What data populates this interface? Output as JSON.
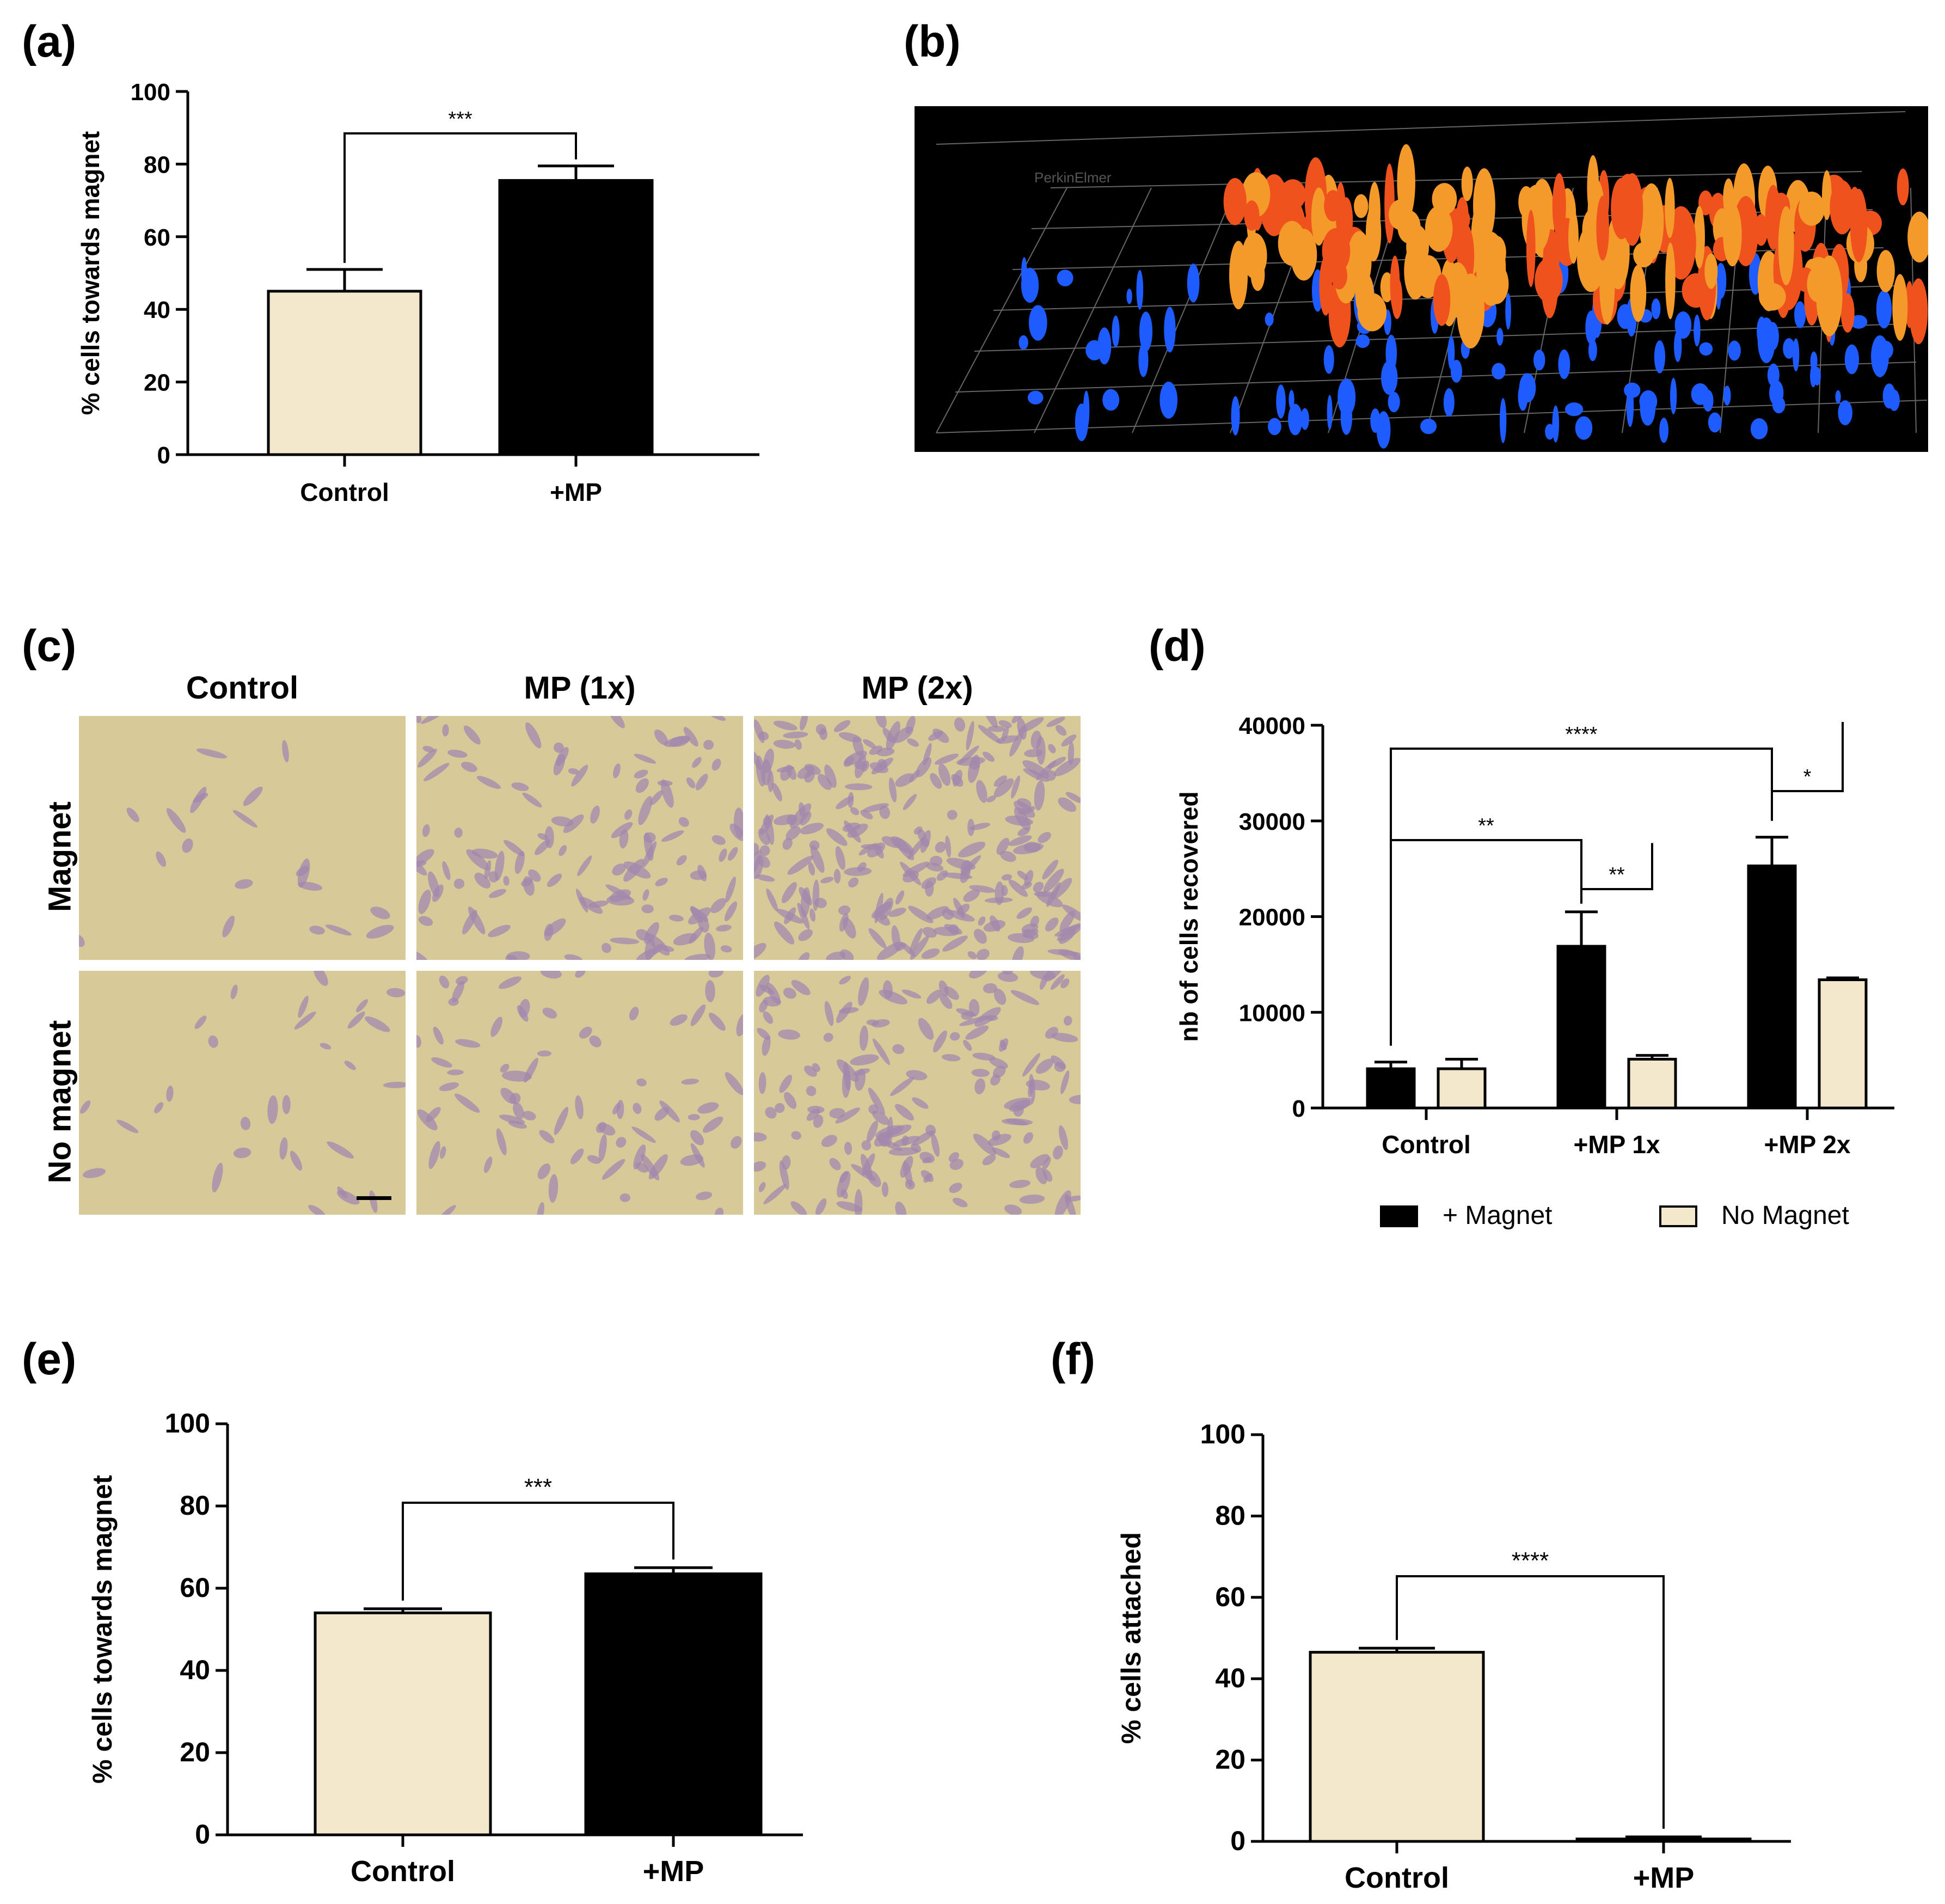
{
  "panels": {
    "a": {
      "letter": "(a)"
    },
    "b": {
      "letter": "(b)",
      "watermark": "PerkinElmer"
    },
    "c": {
      "letter": "(c)",
      "cols": [
        "Control",
        "MP (1x)",
        "MP (2x)"
      ],
      "rows": [
        "Magnet",
        "No magnet"
      ]
    },
    "d": {
      "letter": "(d)"
    },
    "e": {
      "letter": "(e)"
    },
    "f": {
      "letter": "(f)"
    }
  },
  "colors": {
    "cream": "#f3e8cc",
    "black": "#000000",
    "cellStain": "#9d7fa8",
    "bg": "#d8ca98",
    "orange": "#f0521e",
    "blue": "#1f5cff"
  },
  "chart_data": [
    {
      "id": "a",
      "type": "bar",
      "title": "",
      "categories": [
        "Control",
        "+MP"
      ],
      "values": [
        45,
        75.5
      ],
      "errors": [
        6,
        4
      ],
      "colors": [
        "#f3e8cc",
        "#000000"
      ],
      "ylabel": "% cells towards magnet",
      "ylim": [
        0,
        100
      ],
      "yticks": [
        "0",
        "20",
        "40",
        "60",
        "80",
        "100"
      ],
      "annotations": [
        {
          "from": 0,
          "to": 1,
          "label": "***"
        }
      ]
    },
    {
      "id": "d",
      "type": "bar",
      "title": "",
      "categories": [
        "Control",
        "+MP 1x",
        "+MP 2x"
      ],
      "series": [
        {
          "name": "+ Magnet",
          "values": [
            4100,
            16900,
            25300
          ],
          "errors": [
            700,
            3600,
            3000
          ],
          "color": "#000000"
        },
        {
          "name": "No Magnet",
          "values": [
            4100,
            5100,
            13400
          ],
          "errors": [
            1000,
            400,
            200
          ],
          "color": "#f3e8cc"
        }
      ],
      "ylabel": "nb of cells recovered",
      "ylim": [
        0,
        40000
      ],
      "yticks": [
        "0",
        "10000",
        "20000",
        "30000",
        "40000"
      ],
      "legend": [
        "+ Magnet",
        "No Magnet"
      ],
      "annotations": [
        {
          "label": "****"
        },
        {
          "label": "**"
        },
        {
          "label": "**"
        },
        {
          "label": "*"
        }
      ]
    },
    {
      "id": "e",
      "type": "bar",
      "title": "",
      "categories": [
        "Control",
        "+MP"
      ],
      "values": [
        54,
        63.5
      ],
      "errors": [
        1,
        1.5
      ],
      "colors": [
        "#f3e8cc",
        "#000000"
      ],
      "ylabel": "% cells towards magnet",
      "ylim": [
        0,
        100
      ],
      "yticks": [
        "0",
        "20",
        "40",
        "60",
        "80",
        "100"
      ],
      "annotations": [
        {
          "from": 0,
          "to": 1,
          "label": "***"
        }
      ]
    },
    {
      "id": "f",
      "type": "bar",
      "title": "",
      "categories": [
        "Control",
        "+MP"
      ],
      "values": [
        46.5,
        0.6
      ],
      "errors": [
        1,
        0.5
      ],
      "colors": [
        "#f3e8cc",
        "#f3e8cc"
      ],
      "ylabel": "% cells attached",
      "ylim": [
        0,
        100
      ],
      "yticks": [
        "0",
        "20",
        "40",
        "60",
        "80",
        "100"
      ],
      "annotations": [
        {
          "from": 0,
          "to": 1,
          "label": "****"
        }
      ]
    }
  ]
}
